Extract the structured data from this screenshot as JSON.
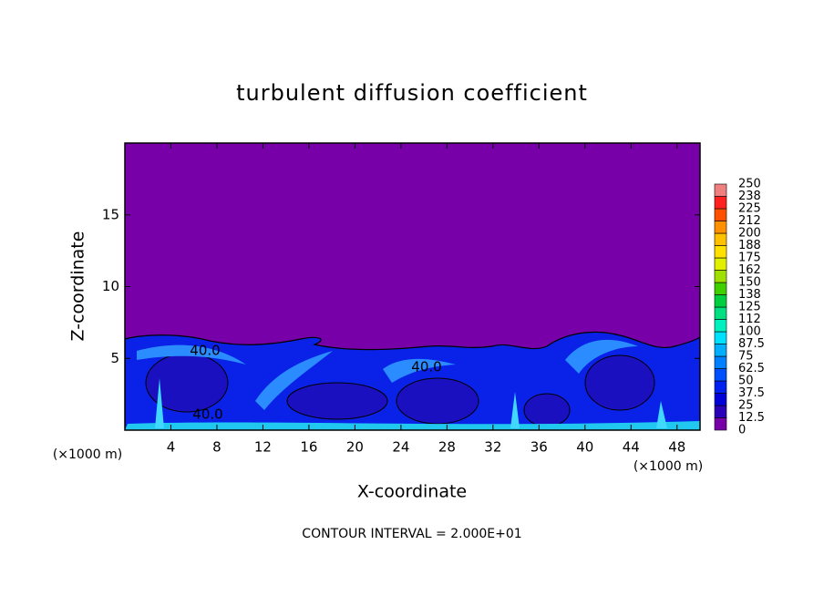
{
  "chart_data": {
    "type": "contour",
    "title": "turbulent diffusion coefficient",
    "x_label": "X-coordinate",
    "y_label": "Z-coordinate",
    "x_unit_labels": [
      "(×1000 m)",
      "(×1000 m)"
    ],
    "footer": "CONTOUR INTERVAL = 2.000E+01",
    "contour_labels": [
      "40.0",
      "40.0",
      "40.0"
    ],
    "xlim": [
      0,
      50
    ],
    "xticks": [
      4,
      8,
      12,
      16,
      20,
      24,
      28,
      32,
      36,
      40,
      44,
      48
    ],
    "ylim": [
      0,
      20
    ],
    "yticks": [
      5,
      10,
      15
    ],
    "grid": false,
    "colorbar": {
      "levels": [
        0,
        12.5,
        25,
        37.5,
        50,
        62.5,
        75,
        87.5,
        100,
        112,
        125,
        138,
        150,
        162,
        175,
        188,
        200,
        212,
        225,
        238,
        250
      ],
      "colors": [
        "#7800a8",
        "#2a00b8",
        "#0000d8",
        "#0020f0",
        "#0050ff",
        "#0080ff",
        "#00b0ff",
        "#00e0ff",
        "#00f0c0",
        "#00e080",
        "#00d040",
        "#40d000",
        "#a0e000",
        "#e0f000",
        "#ffe000",
        "#ffc000",
        "#ff9000",
        "#ff5000",
        "#ff2020",
        "#f08080"
      ]
    }
  }
}
